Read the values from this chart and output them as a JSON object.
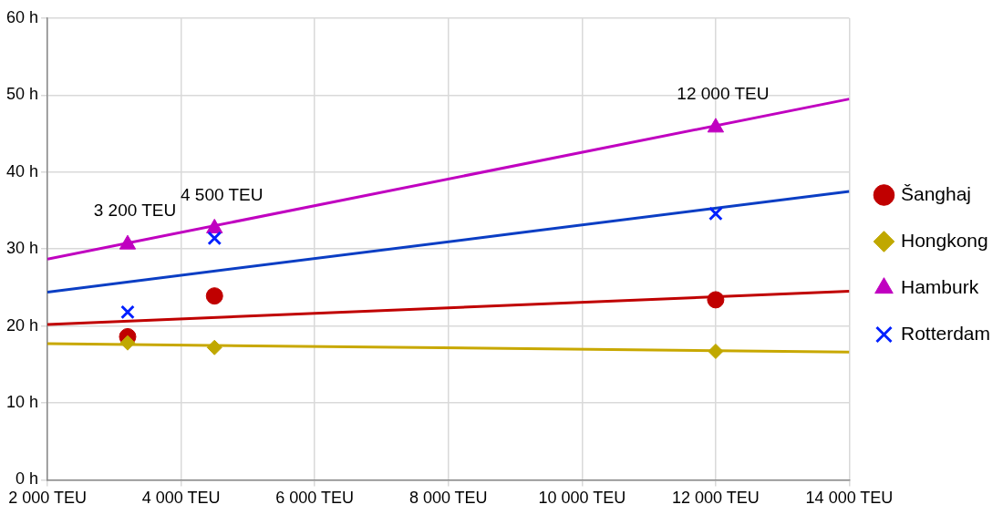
{
  "chart_data": {
    "type": "scatter",
    "xlim": [
      2000,
      14000
    ],
    "ylim": [
      0,
      60
    ],
    "xticks": [
      {
        "value": 2000,
        "label": "2 000 TEU"
      },
      {
        "value": 4000,
        "label": "4 000 TEU"
      },
      {
        "value": 6000,
        "label": "6 000 TEU"
      },
      {
        "value": 8000,
        "label": "8 000 TEU"
      },
      {
        "value": 10000,
        "label": "10 000 TEU"
      },
      {
        "value": 12000,
        "label": "12 000 TEU"
      },
      {
        "value": 14000,
        "label": "14 000 TEU"
      }
    ],
    "yticks": [
      {
        "value": 0,
        "label": "0 h"
      },
      {
        "value": 10,
        "label": "10 h"
      },
      {
        "value": 20,
        "label": "20 h"
      },
      {
        "value": 30,
        "label": "30 h"
      },
      {
        "value": 40,
        "label": "40 h"
      },
      {
        "value": 50,
        "label": "50 h"
      },
      {
        "value": 60,
        "label": "60 h"
      }
    ],
    "grid": true,
    "legend": "right",
    "annotations": [
      {
        "text": "3 200 TEU",
        "x": 3200,
        "y": 30.6
      },
      {
        "text": "4 500 TEU",
        "x": 4500,
        "y": 32.7
      },
      {
        "text": "12 000 TEU",
        "x": 12000,
        "y": 45.8
      }
    ],
    "series": [
      {
        "name": "Šanghaj",
        "type": "scatter",
        "marker": "circle",
        "color": "#c00000",
        "x": [
          3200,
          4500,
          12000
        ],
        "values": [
          18.6,
          23.9,
          23.4
        ]
      },
      {
        "name": "Hongkong",
        "type": "scatter",
        "marker": "diamond",
        "color": "#c0a800",
        "x": [
          3200,
          4500,
          12000
        ],
        "values": [
          17.8,
          17.2,
          16.7
        ]
      },
      {
        "name": "Hamburk",
        "type": "scatter",
        "marker": "triangle",
        "color": "#c000c0",
        "x": [
          3200,
          4500,
          12000
        ],
        "values": [
          30.6,
          32.7,
          45.8
        ]
      },
      {
        "name": "Rotterdam",
        "type": "scatter",
        "marker": "cross",
        "color": "#0020ff",
        "x": [
          3200,
          4500,
          12000
        ],
        "values": [
          21.8,
          31.4,
          34.6
        ]
      },
      {
        "type": "line",
        "marker": "none",
        "color": "#c00000",
        "x": [
          2000,
          14000
        ],
        "values": [
          20.2,
          24.5
        ]
      },
      {
        "type": "line",
        "marker": "none",
        "color": "#c8a800",
        "x": [
          2000,
          14000
        ],
        "values": [
          17.7,
          16.6
        ]
      },
      {
        "type": "line",
        "marker": "none",
        "color": "#c000c0",
        "x": [
          2000,
          14000
        ],
        "values": [
          28.7,
          49.5
        ]
      },
      {
        "type": "line",
        "marker": "none",
        "color": "#0b3ec4",
        "x": [
          2000,
          14000
        ],
        "values": [
          24.4,
          37.5
        ]
      }
    ]
  }
}
